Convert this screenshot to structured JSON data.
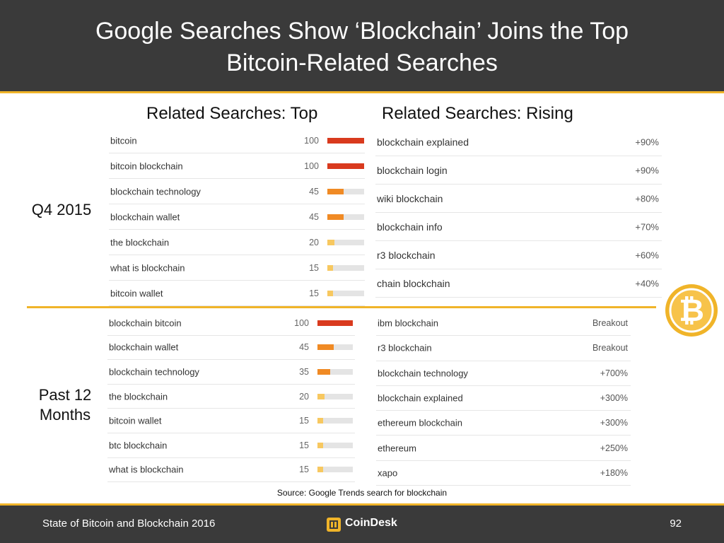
{
  "header": {
    "title_line1": "Google Searches Show ‘Blockchain’ Joins the Top",
    "title_line2": "Bitcoin-Related Searches"
  },
  "columns": {
    "top_heading": "Related Searches: Top",
    "rising_heading": "Related Searches: Rising"
  },
  "rows": {
    "q4_label": "Q4 2015",
    "past_label_line1": "Past 12",
    "past_label_line2": "Months"
  },
  "colors": {
    "bar_100": "#d93a1e",
    "bar_mid": "#f08a24",
    "bar_low": "#f7c860",
    "accent": "#f0b429",
    "header_bg": "#3a3a3a"
  },
  "q4_top": [
    {
      "term": "bitcoin",
      "value": 100
    },
    {
      "term": "bitcoin blockchain",
      "value": 100
    },
    {
      "term": "blockchain technology",
      "value": 45
    },
    {
      "term": "blockchain wallet",
      "value": 45
    },
    {
      "term": "the blockchain",
      "value": 20
    },
    {
      "term": "what is blockchain",
      "value": 15
    },
    {
      "term": "bitcoin wallet",
      "value": 15
    }
  ],
  "q4_rising": [
    {
      "term": "blockchain explained",
      "change": "+90%"
    },
    {
      "term": "blockchain login",
      "change": "+90%"
    },
    {
      "term": "wiki blockchain",
      "change": "+80%"
    },
    {
      "term": "blockchain info",
      "change": "+70%"
    },
    {
      "term": "r3 blockchain",
      "change": "+60%"
    },
    {
      "term": "chain blockchain",
      "change": "+40%"
    }
  ],
  "past_top": [
    {
      "term": "blockchain bitcoin",
      "value": 100
    },
    {
      "term": "blockchain wallet",
      "value": 45
    },
    {
      "term": "blockchain technology",
      "value": 35
    },
    {
      "term": "the blockchain",
      "value": 20
    },
    {
      "term": "bitcoin wallet",
      "value": 15
    },
    {
      "term": "btc blockchain",
      "value": 15
    },
    {
      "term": "what is blockchain",
      "value": 15
    }
  ],
  "past_rising": [
    {
      "term": "ibm blockchain",
      "change": "Breakout"
    },
    {
      "term": "r3 blockchain",
      "change": "Breakout"
    },
    {
      "term": "blockchain technology",
      "change": "+700%"
    },
    {
      "term": "blockchain explained",
      "change": "+300%"
    },
    {
      "term": "ethereum blockchain",
      "change": "+300%"
    },
    {
      "term": "ethereum",
      "change": "+250%"
    },
    {
      "term": "xapo",
      "change": "+180%"
    }
  ],
  "source": "Source: Google Trends search for blockchain",
  "footer": {
    "left": "State of Bitcoin and Blockchain 2016",
    "logo_text": "CoinDesk",
    "page_number": "92"
  },
  "icons": {
    "coin": "bitcoin-coin-icon",
    "logo": "coindesk-logo-icon"
  }
}
